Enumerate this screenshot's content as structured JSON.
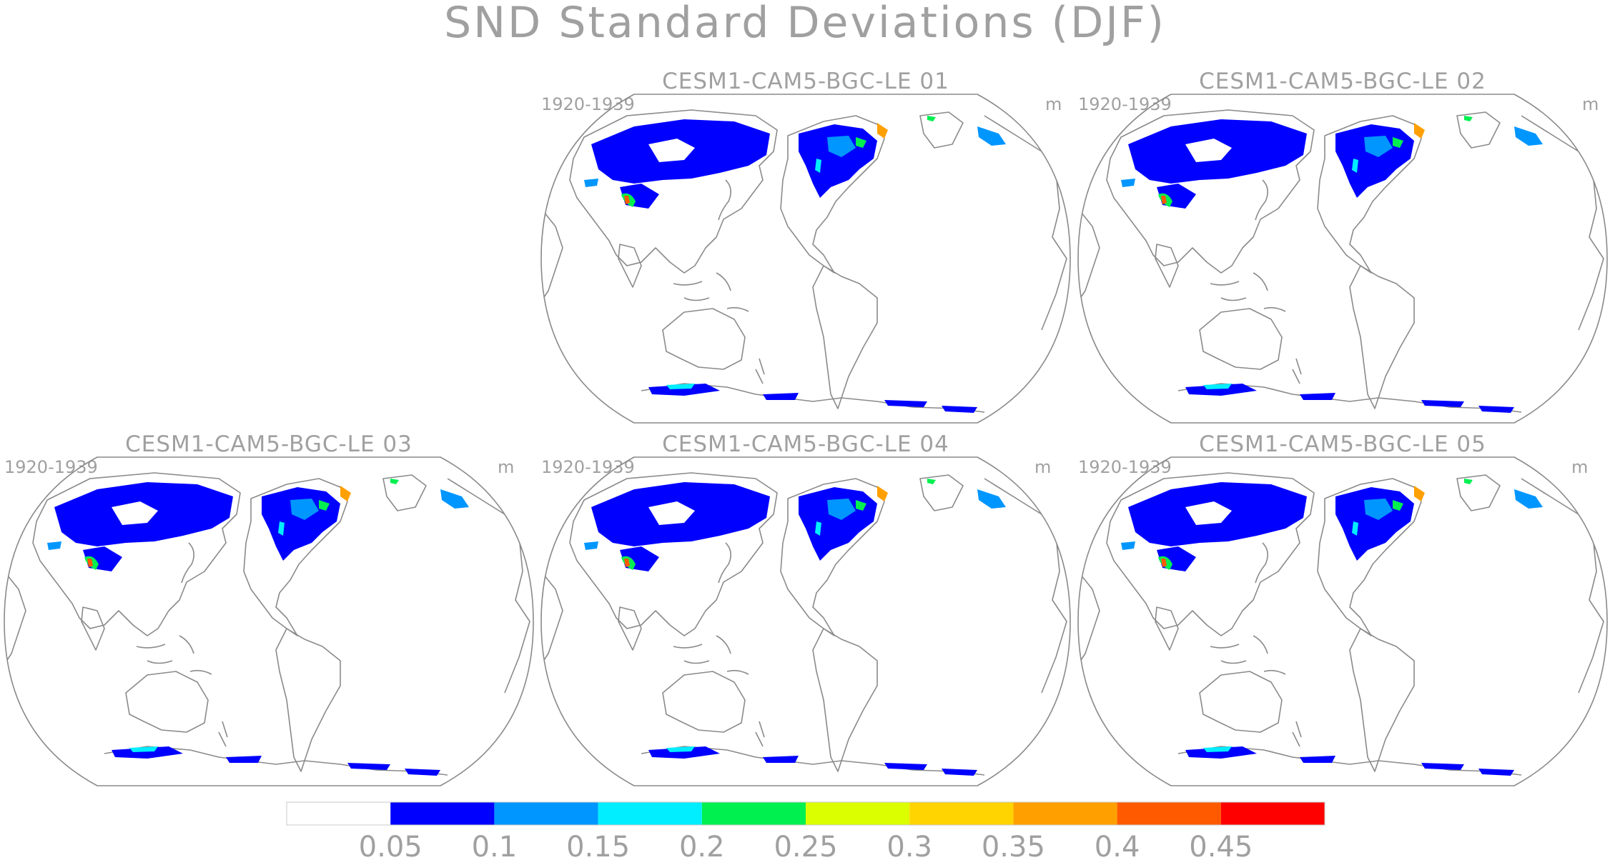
{
  "figure": {
    "title": "SND Standard Deviations (DJF)"
  },
  "panels": [
    {
      "id": "01",
      "title": "CESM1-CAM5-BGC-LE 01",
      "period": "1920-1939",
      "units": "m"
    },
    {
      "id": "02",
      "title": "CESM1-CAM5-BGC-LE 02",
      "period": "1920-1939",
      "units": "m"
    },
    {
      "id": "03",
      "title": "CESM1-CAM5-BGC-LE 03",
      "period": "1920-1939",
      "units": "m"
    },
    {
      "id": "04",
      "title": "CESM1-CAM5-BGC-LE 04",
      "period": "1920-1939",
      "units": "m"
    },
    {
      "id": "05",
      "title": "CESM1-CAM5-BGC-LE 05",
      "period": "1920-1939",
      "units": "m"
    }
  ],
  "colorbar": {
    "colors": [
      "#ffffff",
      "#0000ff",
      "#0096ff",
      "#00eeff",
      "#00f050",
      "#dcff00",
      "#ffd400",
      "#ffa000",
      "#ff5a00",
      "#ff0000"
    ],
    "labels": [
      "0.05",
      "0.1",
      "0.15",
      "0.2",
      "0.25",
      "0.3",
      "0.35",
      "0.4",
      "0.45"
    ]
  },
  "map": {
    "projection": "Robinson (Pacific-centered)",
    "land_outline_color": "#8a8a8a",
    "snow_regions": [
      "North America",
      "Eurasia",
      "Tibetan Plateau",
      "Greenland",
      "Antarctica"
    ]
  }
}
